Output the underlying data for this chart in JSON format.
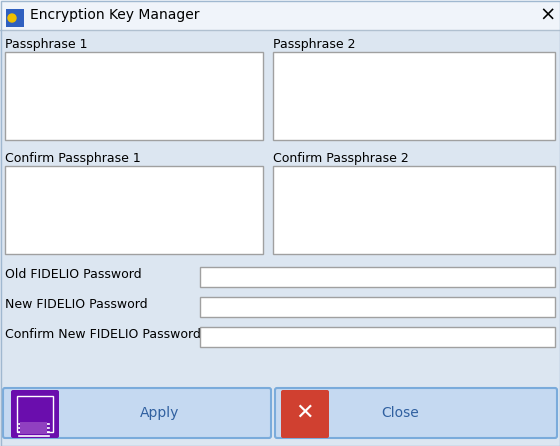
{
  "title": "Encryption Key Manager",
  "bg_color": "#dce6f1",
  "title_bar_color": "#f0f0f0",
  "title_bar_height": 0.08,
  "field_bg": "#ffffff",
  "field_border": "#a0a0a0",
  "text_color": "#000000",
  "label_fontsize": 9,
  "title_fontsize": 10,
  "passphrase1_label": "Passphrase 1",
  "passphrase2_label": "Passphrase 2",
  "confirm1_label": "Confirm Passphrase 1",
  "confirm2_label": "Confirm Passphrase 2",
  "old_pwd_label": "Old FIDELIO Password",
  "new_pwd_label": "New FIDELIO Password",
  "confirm_pwd_label": "Confirm New FIDELIO Password",
  "apply_label": "Apply",
  "close_label": "Close",
  "apply_btn_color": "#c5d9f1",
  "close_btn_color": "#c5d9f1",
  "apply_icon_color": "#6a0dad",
  "close_icon_color": "#d04030"
}
